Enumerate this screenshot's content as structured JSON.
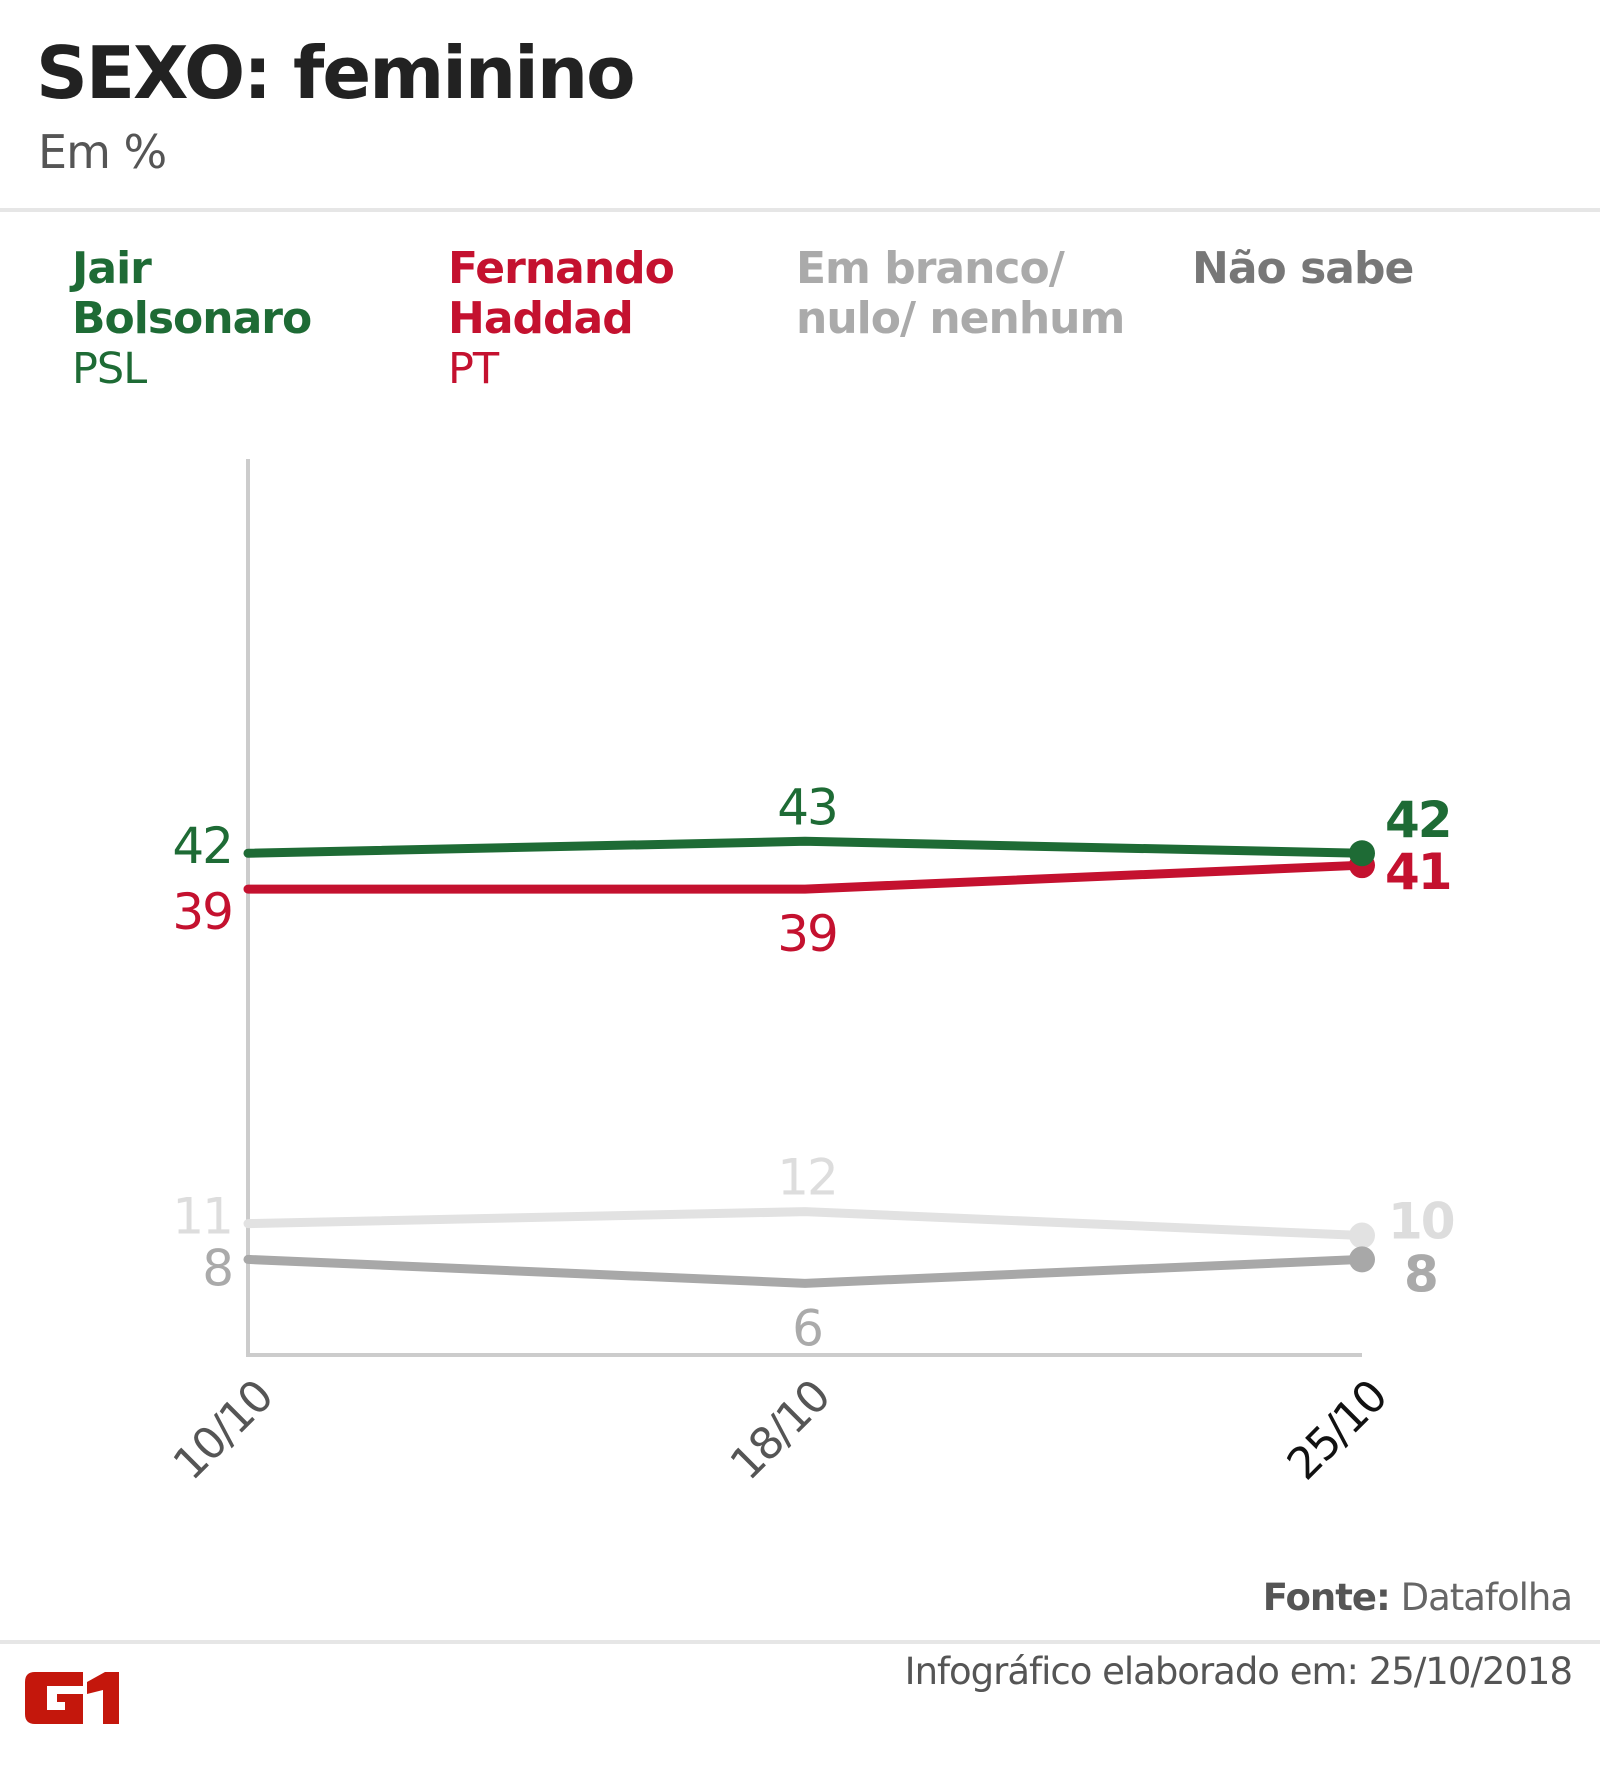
{
  "header": {
    "title": "SEXO: feminino",
    "subtitle": "Em %"
  },
  "legend": [
    {
      "name_line1": "Jair",
      "name_line2": "Bolsonaro",
      "party": "PSL",
      "color": "#1e6b35"
    },
    {
      "name_line1": "Fernando",
      "name_line2": "Haddad",
      "party": "PT",
      "color": "#c4112f"
    },
    {
      "name_line1": "Em branco/",
      "name_line2": "nulo/ nenhum",
      "party": "",
      "color": "#aaaaaa"
    },
    {
      "name_line1": "Não sabe",
      "name_line2": "",
      "party": "",
      "color": "#777777"
    }
  ],
  "chart_data": {
    "type": "line",
    "title": "SEXO: feminino",
    "subtitle": "Em %",
    "xlabel": "",
    "ylabel": "Em %",
    "x": [
      "10/10",
      "18/10",
      "25/10"
    ],
    "ylim": [
      0,
      75
    ],
    "grid": false,
    "legend_position": "top",
    "series": [
      {
        "name": "Jair Bolsonaro (PSL)",
        "values": [
          42,
          43,
          42
        ],
        "color": "#1e6b35",
        "label_color": "#1e6b35"
      },
      {
        "name": "Fernando Haddad (PT)",
        "values": [
          39,
          39,
          41
        ],
        "color": "#c4112f",
        "label_color": "#c4112f"
      },
      {
        "name": "Em branco/ nulo/ nenhum",
        "values": [
          11,
          12,
          10
        ],
        "color": "#e2e2e2",
        "label_color": "#dddddd"
      },
      {
        "name": "Não sabe",
        "values": [
          8,
          6,
          8
        ],
        "color": "#a8a8a8",
        "label_color": "#aaaaaa"
      }
    ]
  },
  "footer": {
    "source_label": "Fonte:",
    "source_value": "Datafolha",
    "made_on": "Infográfico elaborado em: 25/10/2018",
    "logo_text": "G1",
    "logo_color": "#c4170c"
  }
}
